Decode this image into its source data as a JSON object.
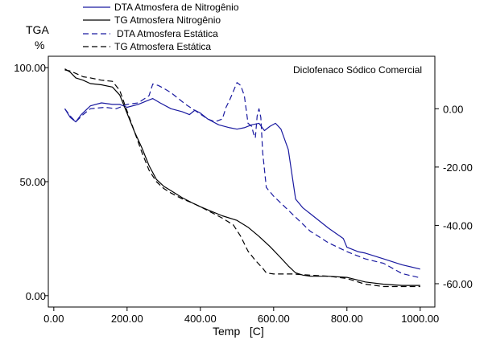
{
  "chart_data": {
    "type": "line",
    "annotation": "Diclofenaco Sódico Comercial",
    "xlabel": "Temp   [C]",
    "ylabel_left_line1": "TGA",
    "ylabel_left_line2": "%",
    "xlim": [
      -15,
      1040
    ],
    "ylim_left": [
      -5,
      105
    ],
    "ylim_right": [
      -68,
      18
    ],
    "x_ticks": [
      0,
      200,
      400,
      600,
      800,
      1000
    ],
    "x_tick_labels": [
      "0.00",
      "200.00",
      "400.00",
      "600.00",
      "800.00",
      "1000.00"
    ],
    "y_left_ticks": [
      0,
      50,
      100
    ],
    "y_left_tick_labels": [
      "0.00",
      "50.00",
      "100.00"
    ],
    "y_right_ticks": [
      0,
      -20,
      -40,
      -60
    ],
    "y_right_tick_labels": [
      "0.00",
      "-20.00",
      "-40.00",
      "-60.00"
    ],
    "legend_placement": "top",
    "series": [
      {
        "name": "DTA Atmosfera de Nitrogênio",
        "axis": "right",
        "dash": "solid",
        "color": "#1a1aa0",
        "x": [
          30,
          45,
          60,
          75,
          100,
          130,
          160,
          180,
          200,
          230,
          250,
          270,
          290,
          320,
          350,
          370,
          385,
          400,
          420,
          450,
          480,
          500,
          520,
          540,
          560,
          575,
          590,
          605,
          620,
          640,
          660,
          680,
          700,
          750,
          790,
          800,
          830,
          850,
          900,
          950,
          1000
        ],
        "y": [
          0,
          -3,
          -4.5,
          -2,
          1,
          2,
          1.5,
          1.5,
          0.5,
          1.5,
          2.5,
          3.5,
          2,
          0,
          -1,
          -2,
          -0.5,
          -1.5,
          -3.5,
          -5.5,
          -6.5,
          -7,
          -6.5,
          -5.5,
          -5,
          -7.5,
          -6,
          -5,
          -7,
          -14,
          -31,
          -34,
          -36,
          -41,
          -44.5,
          -47.5,
          -49,
          -49.5,
          -51.5,
          -53.5,
          -55
        ]
      },
      {
        "name": "TG Atmosfera Nitrogênio",
        "axis": "left",
        "dash": "solid",
        "color": "#000000",
        "x": [
          30,
          45,
          60,
          80,
          100,
          130,
          160,
          180,
          200,
          220,
          240,
          260,
          280,
          300,
          320,
          350,
          380,
          400,
          430,
          460,
          500,
          530,
          560,
          590,
          620,
          640,
          660,
          680,
          700,
          750,
          800,
          850,
          900,
          950,
          1000
        ],
        "y": [
          99.5,
          98,
          95.5,
          94.5,
          93,
          92.5,
          91.5,
          88,
          80,
          72,
          65,
          57,
          51,
          48,
          46,
          43,
          40.5,
          39,
          37,
          35,
          33,
          30,
          26,
          21.5,
          16.5,
          13,
          10,
          9,
          8.5,
          8.5,
          8,
          6,
          5,
          4.5,
          4.5
        ]
      },
      {
        "name": "DTA Atmosfera Estática",
        "axis": "right",
        "dash": "dashed",
        "color": "#1a1aa0",
        "x": [
          30,
          45,
          60,
          80,
          100,
          140,
          170,
          180,
          200,
          230,
          260,
          270,
          285,
          300,
          320,
          340,
          360,
          390,
          420,
          440,
          460,
          470,
          480,
          490,
          500,
          510,
          520,
          530,
          540,
          545,
          550,
          555,
          560,
          565,
          570,
          580,
          600,
          650,
          700,
          750,
          800,
          850,
          900,
          950,
          1000
        ],
        "y": [
          0,
          -2.5,
          -4.5,
          -2,
          0,
          0.5,
          0,
          0.5,
          1.5,
          2,
          4.5,
          8.5,
          8,
          7,
          5.5,
          3.5,
          1.5,
          -1,
          -3.5,
          -4.5,
          -3.5,
          0.5,
          3,
          6,
          9,
          8,
          4.5,
          -5,
          -6,
          -8.5,
          -10,
          -2.5,
          0,
          -3,
          -15,
          -27,
          -30,
          -36,
          -42,
          -46,
          -49,
          -51.5,
          -53,
          -56.5,
          -58
        ]
      },
      {
        "name": "TG Atmosfera Estática",
        "axis": "left",
        "dash": "dashed",
        "color": "#000000",
        "x": [
          30,
          45,
          60,
          80,
          100,
          130,
          160,
          180,
          200,
          220,
          240,
          260,
          280,
          300,
          320,
          350,
          380,
          400,
          430,
          460,
          490,
          510,
          530,
          550,
          570,
          580,
          600,
          650,
          700,
          750,
          800,
          850,
          900,
          950,
          1000
        ],
        "y": [
          99,
          98.5,
          97.5,
          96,
          95.5,
          94.5,
          94,
          90,
          81,
          72,
          63,
          55,
          50,
          47,
          45,
          42.5,
          40.5,
          39,
          36.5,
          34,
          31,
          26,
          19.5,
          15.5,
          12,
          10,
          9.5,
          9.5,
          9,
          8.5,
          7.5,
          5,
          4,
          4,
          4
        ]
      }
    ]
  }
}
